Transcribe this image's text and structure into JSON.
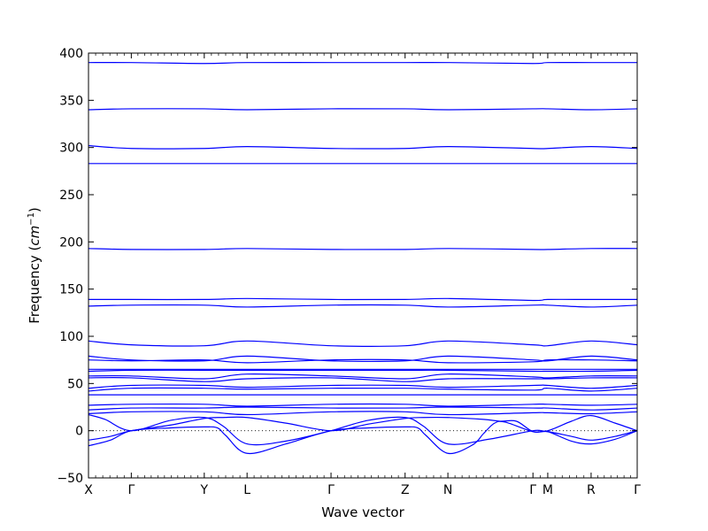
{
  "chart_data": {
    "type": "line",
    "xlabel": "Wave vector",
    "ylabel": "Frequency",
    "ylabel_unit": "cm",
    "ylabel_unit_exp": "−1",
    "ylim": [
      -50,
      400
    ],
    "xlim": [
      0,
      1
    ],
    "yticks": [
      -50,
      0,
      50,
      100,
      150,
      200,
      250,
      300,
      350,
      400
    ],
    "xticks": [
      {
        "label": "X",
        "pos": 0.0
      },
      {
        "label": "Γ",
        "pos": 0.078
      },
      {
        "label": "Y",
        "pos": 0.211
      },
      {
        "label": "L",
        "pos": 0.289
      },
      {
        "label": "Γ",
        "pos": 0.442
      },
      {
        "label": "Z",
        "pos": 0.577
      },
      {
        "label": "N",
        "pos": 0.655
      },
      {
        "label": "Γ",
        "pos": 0.81
      },
      {
        "label": "M",
        "pos": 0.837
      },
      {
        "label": "R",
        "pos": 0.916
      },
      {
        "label": "Γ",
        "pos": 1.0
      }
    ],
    "zero_line": true,
    "line_color": "#0000ff",
    "series": [
      {
        "x": [
          0,
          0.078,
          0.211,
          0.289,
          0.442,
          0.577,
          0.655,
          0.81,
          0.837,
          0.916,
          1
        ],
        "y": [
          390,
          390,
          389,
          390,
          390,
          390,
          390,
          389,
          390,
          390,
          390
        ]
      },
      {
        "x": [
          0,
          0.078,
          0.211,
          0.289,
          0.442,
          0.577,
          0.655,
          0.81,
          0.837,
          0.916,
          1
        ],
        "y": [
          340,
          341,
          341,
          340,
          341,
          341,
          340,
          341,
          341,
          340,
          341
        ]
      },
      {
        "x": [
          0,
          0.078,
          0.211,
          0.289,
          0.442,
          0.577,
          0.655,
          0.81,
          0.837,
          0.916,
          1
        ],
        "y": [
          302,
          299,
          299,
          301,
          299,
          299,
          301,
          299,
          299,
          301,
          299
        ]
      },
      {
        "x": [
          0,
          0.078,
          0.211,
          0.289,
          0.442,
          0.577,
          0.655,
          0.81,
          0.837,
          0.916,
          1
        ],
        "y": [
          283,
          283,
          283,
          283,
          283,
          283,
          283,
          283,
          283,
          283,
          283
        ]
      },
      {
        "x": [
          0,
          0.078,
          0.211,
          0.289,
          0.442,
          0.577,
          0.655,
          0.81,
          0.837,
          0.916,
          1
        ],
        "y": [
          193,
          192,
          192,
          193,
          192,
          192,
          193,
          192,
          192,
          193,
          193
        ]
      },
      {
        "x": [
          0,
          0.078,
          0.211,
          0.289,
          0.442,
          0.577,
          0.655,
          0.81,
          0.837,
          0.916,
          1
        ],
        "y": [
          139,
          139,
          139,
          140,
          139,
          139,
          140,
          138,
          139,
          139,
          139
        ]
      },
      {
        "x": [
          0,
          0.078,
          0.211,
          0.289,
          0.442,
          0.577,
          0.655,
          0.81,
          0.837,
          0.916,
          1
        ],
        "y": [
          132,
          133,
          133,
          131,
          133,
          133,
          131,
          133,
          133,
          131,
          133
        ]
      },
      {
        "x": [
          0,
          0.078,
          0.211,
          0.289,
          0.442,
          0.577,
          0.655,
          0.81,
          0.837,
          0.916,
          1
        ],
        "y": [
          95,
          91,
          90,
          95,
          90,
          90,
          95,
          91,
          90,
          95,
          91
        ]
      },
      {
        "x": [
          0,
          0.078,
          0.211,
          0.289,
          0.442,
          0.577,
          0.655,
          0.81,
          0.837,
          0.916,
          1
        ],
        "y": [
          79,
          75,
          74,
          79,
          74,
          74,
          79,
          75,
          74,
          79,
          75
        ]
      },
      {
        "x": [
          0,
          0.078,
          0.211,
          0.289,
          0.442,
          0.577,
          0.655,
          0.81,
          0.837,
          0.916,
          1
        ],
        "y": [
          75,
          74,
          75,
          72,
          75,
          75,
          72,
          73,
          75,
          75,
          74
        ]
      },
      {
        "x": [
          0,
          0.078,
          0.211,
          0.289,
          0.442,
          0.577,
          0.655,
          0.81,
          0.837,
          0.916,
          1
        ],
        "y": [
          65,
          65,
          65,
          65,
          65,
          65,
          65,
          65,
          65,
          65,
          65
        ]
      },
      {
        "x": [
          0,
          0.078,
          0.211,
          0.289,
          0.442,
          0.577,
          0.655,
          0.81,
          0.837,
          0.916,
          1
        ],
        "y": [
          63,
          64,
          64,
          64,
          64,
          64,
          64,
          63,
          63,
          63,
          64
        ]
      },
      {
        "x": [
          0,
          0.078,
          0.211,
          0.289,
          0.442,
          0.577,
          0.655,
          0.81,
          0.837,
          0.916,
          1
        ],
        "y": [
          58,
          58,
          55,
          60,
          58,
          55,
          60,
          57,
          56,
          58,
          58
        ]
      },
      {
        "x": [
          0,
          0.078,
          0.211,
          0.289,
          0.442,
          0.577,
          0.655,
          0.81,
          0.837,
          0.916,
          1
        ],
        "y": [
          56,
          56,
          52,
          55,
          56,
          52,
          55,
          55,
          55,
          56,
          56
        ]
      },
      {
        "x": [
          0,
          0.078,
          0.211,
          0.289,
          0.442,
          0.577,
          0.655,
          0.81,
          0.837,
          0.916,
          1
        ],
        "y": [
          45,
          48,
          48,
          46,
          48,
          48,
          46,
          48,
          48,
          45,
          48
        ]
      },
      {
        "x": [
          0,
          0.078,
          0.211,
          0.289,
          0.442,
          0.577,
          0.655,
          0.81,
          0.837,
          0.916,
          1
        ],
        "y": [
          42,
          45,
          45,
          44,
          45,
          45,
          44,
          43,
          45,
          42,
          45
        ]
      },
      {
        "x": [
          0,
          0.078,
          0.211,
          0.289,
          0.442,
          0.577,
          0.655,
          0.81,
          0.837,
          0.916,
          1
        ],
        "y": [
          38,
          38,
          38,
          38,
          38,
          38,
          38,
          38,
          38,
          38,
          38
        ]
      },
      {
        "x": [
          0,
          0.078,
          0.211,
          0.289,
          0.442,
          0.577,
          0.655,
          0.81,
          0.837,
          0.916,
          1
        ],
        "y": [
          27,
          28,
          28,
          26,
          28,
          28,
          26,
          28,
          28,
          27,
          28
        ]
      },
      {
        "x": [
          0,
          0.078,
          0.211,
          0.289,
          0.442,
          0.577,
          0.655,
          0.81,
          0.837,
          0.916,
          1
        ],
        "y": [
          22,
          24,
          24,
          25,
          24,
          24,
          25,
          24,
          24,
          22,
          24
        ]
      },
      {
        "x": [
          0,
          0.078,
          0.211,
          0.289,
          0.442,
          0.577,
          0.655,
          0.81,
          0.837,
          0.916,
          1
        ],
        "y": [
          18,
          20,
          20,
          17,
          20,
          20,
          17,
          19,
          19,
          18,
          20
        ]
      },
      {
        "x": [
          0,
          0.03,
          0.078,
          0.15,
          0.211,
          0.245,
          0.289,
          0.36,
          0.442,
          0.51,
          0.577,
          0.61,
          0.655,
          0.73,
          0.81,
          0.837,
          0.88,
          0.916,
          0.96,
          1
        ],
        "y": [
          17,
          12,
          0,
          11,
          14,
          5,
          -14,
          -11,
          0,
          11,
          14,
          5,
          -14,
          -9,
          0,
          0,
          10,
          16,
          8,
          0
        ]
      },
      {
        "x": [
          0,
          0.04,
          0.078,
          0.15,
          0.211,
          0.245,
          0.289,
          0.36,
          0.442,
          0.51,
          0.577,
          0.61,
          0.655,
          0.72,
          0.75,
          0.78,
          0.81,
          0.837,
          0.88,
          0.916,
          0.96,
          1
        ],
        "y": [
          -10,
          -6,
          0,
          6,
          13,
          14,
          14,
          8,
          0,
          7,
          13,
          14,
          14,
          12,
          10,
          10,
          -1,
          -1,
          -6,
          -10,
          -6,
          0
        ]
      },
      {
        "x": [
          0,
          0.04,
          0.078,
          0.15,
          0.211,
          0.235,
          0.25,
          0.289,
          0.36,
          0.442,
          0.51,
          0.577,
          0.6,
          0.615,
          0.655,
          0.7,
          0.72,
          0.74,
          0.76,
          0.81,
          0.837,
          0.88,
          0.916,
          0.96,
          1
        ],
        "y": [
          -16,
          -10,
          0,
          3,
          4,
          3,
          -5,
          -24,
          -14,
          0,
          3,
          4,
          3,
          -5,
          -24,
          -15,
          -3,
          8,
          9,
          -1,
          -1,
          -11,
          -14,
          -9,
          0
        ]
      }
    ]
  }
}
